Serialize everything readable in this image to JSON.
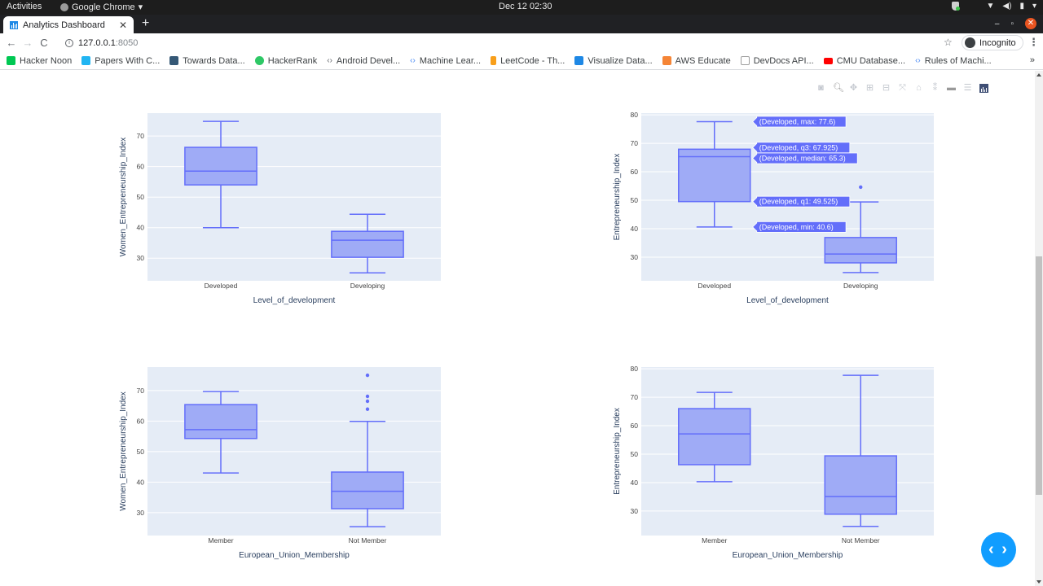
{
  "os": {
    "activities": "Activities",
    "app_name": "Google Chrome",
    "clock": "Dec 12  02:30"
  },
  "browser": {
    "tab_title": "Analytics Dashboard",
    "url_host": "127.0.0.1",
    "url_port": ":8050",
    "incognito_label": "Incognito",
    "bookmarks": [
      {
        "label": "Hacker Noon",
        "color": "#00c853"
      },
      {
        "label": "Papers With C...",
        "color": "#21b5f2"
      },
      {
        "label": "Towards Data...",
        "color": "#355876"
      },
      {
        "label": "HackerRank",
        "color": "#2ec866"
      },
      {
        "label": "Android Devel...",
        "color": "#5f6368"
      },
      {
        "label": "Machine Lear...",
        "color": "#4285f4"
      },
      {
        "label": "LeetCode - Th...",
        "color": "#f89f1b"
      },
      {
        "label": "Visualize Data...",
        "color": "#1e88e5"
      },
      {
        "label": "AWS Educate",
        "color": "#f58536"
      },
      {
        "label": "DevDocs API...",
        "color": "#9e9e9e"
      },
      {
        "label": "CMU Database...",
        "color": "#ff0000"
      },
      {
        "label": "Rules of Machi...",
        "color": "#4285f4"
      }
    ],
    "bookmarks_overflow": "»"
  },
  "modebar": {
    "buttons": [
      "camera-icon",
      "zoom-icon",
      "pan-icon",
      "zoom-in-icon",
      "zoom-out-icon",
      "autoscale-icon",
      "reset-axes-icon",
      "spike-lines-icon",
      "hover-closest-icon",
      "hover-compare-icon",
      "plotly-logo-icon"
    ]
  },
  "colors": {
    "box_line": "#636efa",
    "box_fill": "#9fabf6",
    "plot_bg": "#e5ecf6",
    "grid": "#ffffff",
    "fab": "#119dff"
  },
  "chart_data": [
    {
      "type": "box",
      "title": "",
      "xlabel": "Level_of_development",
      "ylabel": "Women_Entrepreneurship_Index",
      "categories": [
        "Developed",
        "Developing"
      ],
      "ylim": [
        22.6,
        77.5
      ],
      "yticks": [
        30,
        40,
        50,
        60,
        70
      ],
      "grid": true,
      "series": [
        {
          "name": "Developed",
          "min": 40,
          "q1": 54,
          "median": 58.5,
          "q3": 66.3,
          "max": 74.8,
          "outliers": []
        },
        {
          "name": "Developing",
          "min": 25.2,
          "q1": 30.3,
          "median": 35.9,
          "q3": 38.8,
          "max": 44.4,
          "outliers": []
        }
      ]
    },
    {
      "type": "box",
      "title": "",
      "xlabel": "Level_of_development",
      "ylabel": "Entrepreneurship_Index",
      "categories": [
        "Developed",
        "Developing"
      ],
      "ylim": [
        21.7,
        80.6
      ],
      "yticks": [
        30,
        40,
        50,
        60,
        70,
        80
      ],
      "grid": true,
      "series": [
        {
          "name": "Developed",
          "min": 40.6,
          "q1": 49.525,
          "median": 65.3,
          "q3": 67.925,
          "max": 77.6,
          "outliers": []
        },
        {
          "name": "Developing",
          "min": 24.6,
          "q1": 28,
          "median": 31.1,
          "q3": 36.9,
          "max": 49.4,
          "outliers": [
            54.6
          ]
        }
      ],
      "hover_labels": [
        {
          "text": "(Developed, max: 77.6)",
          "value": 77.6
        },
        {
          "text": "(Developed, q3: 67.925)",
          "value": 67.925
        },
        {
          "text": "(Developed, median: 65.3)",
          "value": 65.3
        },
        {
          "text": "(Developed, q1: 49.525)",
          "value": 49.525
        },
        {
          "text": "(Developed, min: 40.6)",
          "value": 40.6
        }
      ]
    },
    {
      "type": "box",
      "title": "",
      "xlabel": "European_Union_Membership",
      "ylabel": "Women_Entrepreneurship_Index",
      "categories": [
        "Member",
        "Not Member"
      ],
      "ylim": [
        22.5,
        77.7
      ],
      "yticks": [
        30,
        40,
        50,
        60,
        70
      ],
      "grid": true,
      "series": [
        {
          "name": "Member",
          "min": 43,
          "q1": 54.3,
          "median": 57.2,
          "q3": 65.4,
          "max": 69.7,
          "outliers": []
        },
        {
          "name": "Not Member",
          "min": 25.4,
          "q1": 31.3,
          "median": 37,
          "q3": 43.3,
          "max": 59.9,
          "outliers": [
            63.9,
            66.5,
            68.1,
            75
          ]
        }
      ]
    },
    {
      "type": "box",
      "title": "",
      "xlabel": "European_Union_Membership",
      "ylabel": "Entrepreneurship_Index",
      "categories": [
        "Member",
        "Not Member"
      ],
      "ylim": [
        21.4,
        80.6
      ],
      "yticks": [
        30,
        40,
        50,
        60,
        70,
        80
      ],
      "grid": true,
      "series": [
        {
          "name": "Member",
          "min": 40.3,
          "q1": 46.3,
          "median": 57.1,
          "q3": 66,
          "max": 71.7,
          "outliers": []
        },
        {
          "name": "Not Member",
          "min": 24.6,
          "q1": 28.9,
          "median": 35.1,
          "q3": 49.4,
          "max": 77.7,
          "outliers": []
        }
      ]
    }
  ],
  "fab": {
    "icon": "code-brackets-icon",
    "label": "‹ ›"
  }
}
